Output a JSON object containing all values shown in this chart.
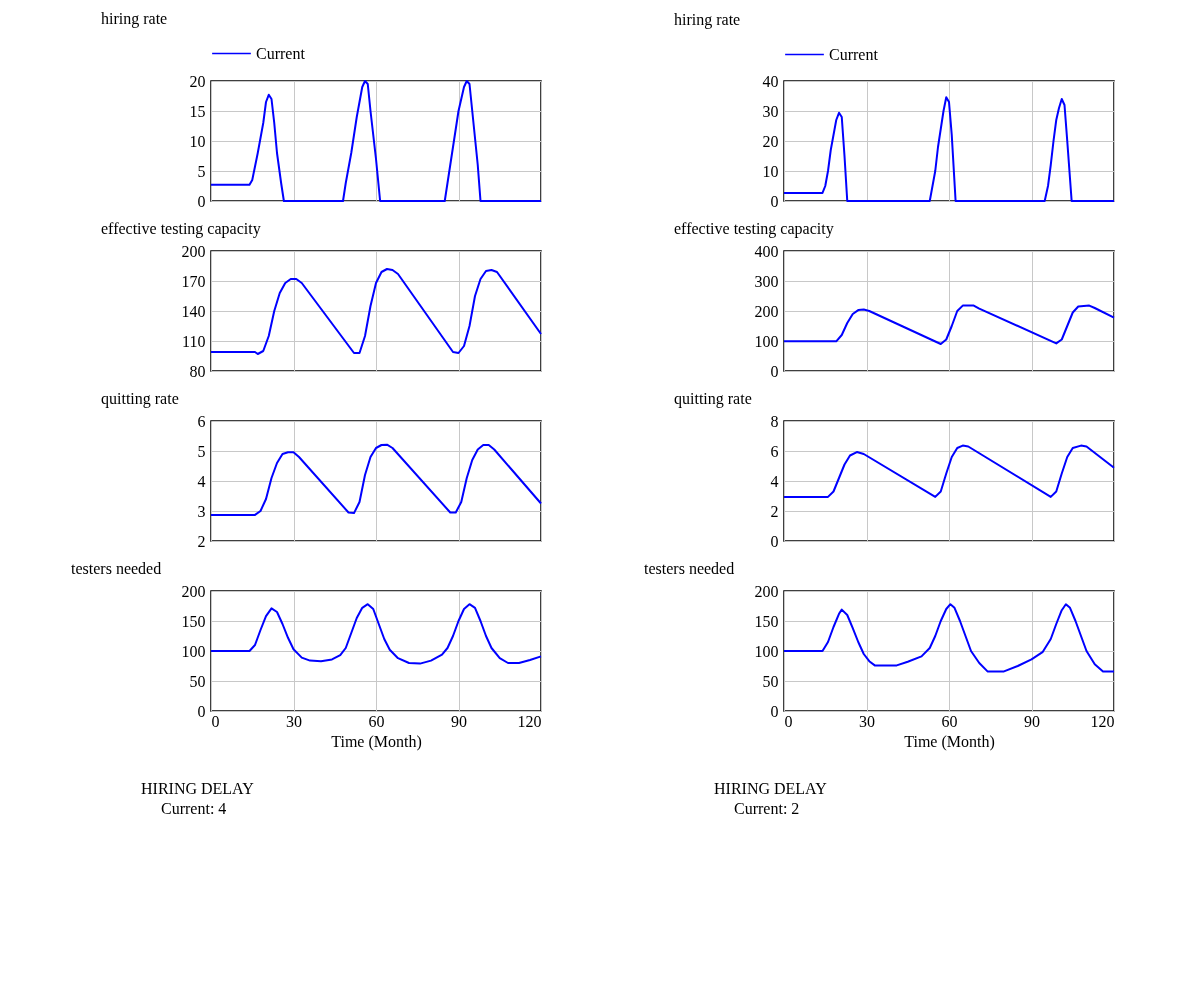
{
  "chart_data": [
    {
      "type": "line",
      "title": "hiring rate",
      "legend": "top",
      "grid": true,
      "tick_labels": "y",
      "xlim": [
        0,
        120
      ],
      "xticks": [
        0,
        30,
        60,
        90,
        120
      ],
      "ylim": [
        0,
        20
      ],
      "yticks": [
        0,
        5,
        10,
        15,
        20
      ],
      "series": [
        {
          "name": "Current",
          "color": "#0000ff",
          "x": [
            0,
            14,
            15,
            17,
            19,
            20,
            21,
            22,
            23,
            24,
            25.5,
            26.5,
            48,
            49,
            51,
            53,
            55,
            56,
            57,
            58,
            60,
            61.5,
            85,
            86,
            88,
            90,
            92,
            93,
            94,
            95,
            97,
            98,
            120
          ],
          "values": [
            2.7,
            2.7,
            3.5,
            8,
            13,
            16.5,
            17.7,
            17,
            13,
            8,
            3,
            0,
            0,
            3,
            8,
            14,
            19,
            20,
            19.5,
            15,
            7,
            0,
            0,
            3,
            9,
            15,
            19,
            20,
            19.5,
            15,
            6,
            0,
            0
          ]
        }
      ]
    },
    {
      "type": "line",
      "title": "hiring rate",
      "legend": "top",
      "grid": true,
      "tick_labels": "y",
      "xlim": [
        0,
        120
      ],
      "xticks": [
        0,
        30,
        60,
        90,
        120
      ],
      "ylim": [
        0,
        40
      ],
      "yticks": [
        0,
        10,
        20,
        30,
        40
      ],
      "series": [
        {
          "name": "Current",
          "color": "#0000ff",
          "x": [
            0,
            14,
            15,
            16,
            17,
            18,
            19,
            20,
            21,
            22,
            23,
            53,
            54,
            55,
            56,
            57,
            58,
            59,
            60,
            61,
            62.4,
            94.8,
            96,
            97,
            98,
            99,
            100,
            101,
            102,
            103,
            104.6,
            120
          ],
          "values": [
            2.7,
            2.7,
            5,
            10,
            17,
            22,
            27,
            29.4,
            28,
            15,
            0,
            0,
            5,
            10,
            18,
            24,
            30,
            34.6,
            33,
            22,
            0,
            0,
            5,
            12,
            20,
            27,
            31,
            34,
            32,
            20,
            0,
            0
          ]
        }
      ]
    },
    {
      "type": "line",
      "title": "effective testing capacity",
      "grid": true,
      "tick_labels": "y",
      "xlim": [
        0,
        120
      ],
      "xticks": [
        0,
        30,
        60,
        90,
        120
      ],
      "ylim": [
        80,
        200
      ],
      "yticks": [
        80,
        110,
        140,
        170,
        200
      ],
      "series": [
        {
          "color": "#0000ff",
          "x": [
            0,
            16,
            17,
            19,
            21,
            23,
            25,
            27,
            29,
            31,
            33,
            52,
            54,
            56,
            58,
            60,
            62,
            64,
            66,
            68,
            88,
            90,
            92,
            94,
            96,
            98,
            100,
            102,
            104,
            120
          ],
          "values": [
            99,
            99,
            97,
            100,
            115,
            140,
            158,
            168,
            172,
            172,
            168,
            98,
            98,
            115,
            145,
            168,
            179,
            182,
            181,
            177,
            99,
            98,
            105,
            125,
            155,
            172,
            180,
            181,
            179,
            117
          ]
        }
      ]
    },
    {
      "type": "line",
      "title": "effective testing capacity",
      "grid": true,
      "tick_labels": "y",
      "xlim": [
        0,
        120
      ],
      "xticks": [
        0,
        30,
        60,
        90,
        120
      ],
      "ylim": [
        0,
        400
      ],
      "yticks": [
        0,
        100,
        200,
        300,
        400
      ],
      "series": [
        {
          "color": "#0000ff",
          "x": [
            0,
            19,
            21,
            23,
            25,
            27,
            29,
            31,
            57,
            59,
            61,
            63,
            65,
            69,
            71,
            99,
            101,
            103,
            105,
            107,
            111,
            113,
            120
          ],
          "values": [
            99,
            99,
            120,
            160,
            190,
            203,
            205,
            200,
            90,
            105,
            150,
            200,
            218,
            218,
            208,
            92,
            105,
            150,
            195,
            215,
            218,
            210,
            178
          ]
        }
      ]
    },
    {
      "type": "line",
      "title": "quitting rate",
      "grid": true,
      "tick_labels": "y",
      "xlim": [
        0,
        120
      ],
      "xticks": [
        0,
        30,
        60,
        90,
        120
      ],
      "ylim": [
        2,
        6
      ],
      "yticks": [
        2,
        3,
        4,
        5,
        6
      ],
      "series": [
        {
          "color": "#0000ff",
          "x": [
            0,
            16,
            18,
            20,
            22,
            24,
            26,
            28,
            30,
            32,
            50,
            52,
            54,
            56,
            58,
            60,
            62,
            64,
            66,
            87,
            89,
            91,
            93,
            95,
            97,
            99,
            101,
            103,
            120
          ],
          "values": [
            2.87,
            2.87,
            3,
            3.4,
            4.1,
            4.6,
            4.9,
            4.96,
            4.96,
            4.8,
            2.95,
            2.93,
            3.3,
            4.2,
            4.8,
            5.1,
            5.2,
            5.21,
            5.1,
            2.95,
            2.95,
            3.3,
            4.1,
            4.7,
            5.05,
            5.2,
            5.2,
            5.05,
            3.25
          ]
        }
      ]
    },
    {
      "type": "line",
      "title": "quitting rate",
      "grid": true,
      "tick_labels": "y",
      "xlim": [
        0,
        120
      ],
      "xticks": [
        0,
        30,
        60,
        90,
        120
      ],
      "ylim": [
        0,
        8
      ],
      "yticks": [
        0,
        2,
        4,
        6,
        8
      ],
      "series": [
        {
          "color": "#0000ff",
          "x": [
            0,
            16,
            18,
            20,
            22,
            24,
            26.5,
            29,
            55,
            57,
            59,
            61,
            63,
            65,
            67,
            97,
            99,
            101,
            103,
            105,
            108,
            110,
            120
          ],
          "values": [
            2.94,
            2.94,
            3.3,
            4.2,
            5.1,
            5.7,
            5.93,
            5.8,
            2.94,
            3.3,
            4.5,
            5.6,
            6.2,
            6.36,
            6.3,
            2.94,
            3.3,
            4.5,
            5.6,
            6.2,
            6.36,
            6.3,
            4.88
          ]
        }
      ]
    },
    {
      "type": "line",
      "title": "testers needed",
      "xlabel": "Time (Month)",
      "grid": true,
      "xlim": [
        0,
        120
      ],
      "xticks": [
        0,
        30,
        60,
        90,
        120
      ],
      "ylim": [
        0,
        200
      ],
      "yticks": [
        0,
        50,
        100,
        150,
        200
      ],
      "annotations": [
        "HIRING DELAY",
        "Current: 4"
      ],
      "series": [
        {
          "color": "#0000ff",
          "x": [
            0,
            14,
            16,
            18,
            20,
            22,
            24,
            26,
            28,
            30,
            33,
            36,
            40,
            44,
            47,
            49,
            51,
            53,
            55,
            57,
            59,
            61,
            63,
            65,
            68,
            72,
            76,
            80,
            84,
            86,
            88,
            90,
            92,
            94,
            96,
            98,
            100,
            102,
            105,
            108,
            112,
            116,
            120
          ],
          "values": [
            100,
            100,
            110,
            135,
            158,
            171,
            165,
            145,
            122,
            103,
            89,
            84,
            83,
            86,
            93,
            105,
            130,
            155,
            172,
            178,
            170,
            145,
            120,
            102,
            88,
            80,
            79,
            84,
            94,
            105,
            125,
            150,
            170,
            178,
            172,
            150,
            125,
            105,
            88,
            80,
            80,
            85,
            91
          ]
        }
      ]
    },
    {
      "type": "line",
      "title": "testers needed",
      "xlabel": "Time (Month)",
      "grid": true,
      "xlim": [
        0,
        120
      ],
      "xticks": [
        0,
        30,
        60,
        90,
        120
      ],
      "ylim": [
        0,
        200
      ],
      "yticks": [
        0,
        50,
        100,
        150,
        200
      ],
      "annotations": [
        "HIRING DELAY",
        "Current: 2"
      ],
      "series": [
        {
          "color": "#0000ff",
          "x": [
            0,
            14,
            16,
            18,
            20,
            21,
            23,
            25,
            27,
            29,
            31,
            33,
            41,
            45,
            50,
            53,
            55,
            57,
            59,
            60.5,
            62,
            64,
            66,
            68,
            71,
            74,
            80,
            85,
            90,
            94,
            97,
            99,
            101,
            102.5,
            104,
            106,
            108,
            110,
            113,
            116,
            120
          ],
          "values": [
            100,
            100,
            115,
            140,
            162,
            169,
            160,
            138,
            115,
            95,
            83,
            76,
            76,
            82,
            91,
            105,
            125,
            150,
            170,
            178,
            172,
            150,
            125,
            100,
            80,
            66,
            66,
            75,
            86,
            98,
            120,
            145,
            168,
            178,
            172,
            150,
            125,
            100,
            78,
            66,
            66
          ]
        }
      ]
    }
  ]
}
